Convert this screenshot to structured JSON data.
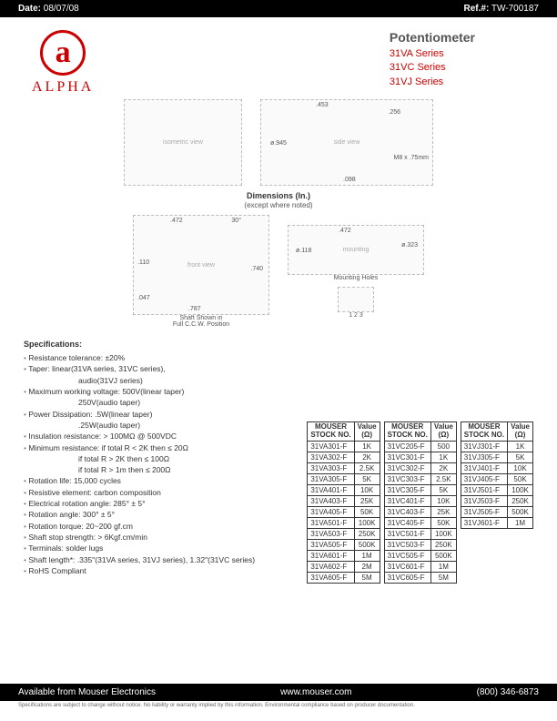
{
  "header": {
    "dateLabel": "Date:",
    "date": "08/07/08",
    "refLabel": "Ref.#:",
    "ref": "TW-700187"
  },
  "logo": {
    "letter": "a",
    "brand": "ALPHA"
  },
  "title": {
    "main": "Potentiometer",
    "series": [
      "31VA Series",
      "31VC Series",
      "31VJ Series"
    ]
  },
  "diagrams": {
    "top": {
      "left": {
        "placeholder": "isometric view"
      },
      "right": {
        "placeholder": "side view",
        "annotations": {
          "w": ".453",
          "h": ".256",
          "dia": "ø.945",
          "thread": "M8 x .75mm",
          "base": ".098"
        }
      }
    },
    "midLabel": "Dimensions (In.)",
    "midSub": "(except where noted)",
    "bottom": {
      "left": {
        "placeholder": "front view",
        "annotations": {
          "top": ".472",
          "ang": "30°",
          "l1": ".110",
          "l2": ".047",
          "h": ".740",
          "w": ".787"
        },
        "caption": "Shaft Shown in\nFull C.C.W. Position"
      },
      "right": {
        "placeholder": "mounting",
        "annotations": {
          "c": ".472",
          "d1": "ø.118",
          "d2": "ø.323"
        },
        "caption": "Mounting Holes",
        "pins": "1 2 3"
      }
    }
  },
  "specsTitle": "Specifications:",
  "specs": [
    "Resistance tolerance:  ±20%",
    "Taper:  linear(31VA series, 31VC series),",
    "          audio(31VJ series)",
    "Maximum working voltage:  500V(linear taper)",
    "                                        250V(audio taper)",
    "Power Dissipation:  .5W(linear taper)",
    "                              .25W(audio taper)",
    "Insulation resistance:  > 100MΩ @ 500VDC",
    "Minimum resistance:  if total R < 2K then ≤ 20Ω",
    "                                 if total R > 2K then ≤ 100Ω",
    "                                 if total R > 1m then ≤ 200Ω",
    "Rotation life:  15,000 cycles",
    "Resistive element:  carbon composition",
    "Electrical rotation angle:  285° ± 5°",
    "Rotation angle:  300° ± 5°",
    "Rotation torque:  20~200 gf.cm",
    "Shaft stop strength:  > 6Kgf.cm/min",
    "Terminals:  solder lugs",
    "Shaft length*:  .335\"(31VA series, 31VJ series), 1.32\"(31VC series)",
    "RoHS Compliant"
  ],
  "specIndents": [
    2,
    4,
    6,
    9,
    10
  ],
  "tableHeaders": {
    "stock": "MOUSER\nSTOCK NO.",
    "value": "Value\n(Ω)"
  },
  "tables": [
    {
      "rows": [
        [
          "31VA301-F",
          "1K"
        ],
        [
          "31VA302-F",
          "2K"
        ],
        [
          "31VA303-F",
          "2.5K"
        ],
        [
          "31VA305-F",
          "5K"
        ],
        [
          "31VA401-F",
          "10K"
        ],
        [
          "31VA403-F",
          "25K"
        ],
        [
          "31VA405-F",
          "50K"
        ],
        [
          "31VA501-F",
          "100K"
        ],
        [
          "31VA503-F",
          "250K"
        ],
        [
          "31VA505-F",
          "500K"
        ],
        [
          "31VA601-F",
          "1M"
        ],
        [
          "31VA602-F",
          "2M"
        ],
        [
          "31VA605-F",
          "5M"
        ]
      ]
    },
    {
      "rows": [
        [
          "31VC205-F",
          "500"
        ],
        [
          "31VC301-F",
          "1K"
        ],
        [
          "31VC302-F",
          "2K"
        ],
        [
          "31VC303-F",
          "2.5K"
        ],
        [
          "31VC305-F",
          "5K"
        ],
        [
          "31VC401-F",
          "10K"
        ],
        [
          "31VC403-F",
          "25K"
        ],
        [
          "31VC405-F",
          "50K"
        ],
        [
          "31VC501-F",
          "100K"
        ],
        [
          "31VC503-F",
          "250K"
        ],
        [
          "31VC505-F",
          "500K"
        ],
        [
          "31VC601-F",
          "1M"
        ],
        [
          "31VC605-F",
          "5M"
        ]
      ]
    },
    {
      "rows": [
        [
          "31VJ301-F",
          "1K"
        ],
        [
          "31VJ305-F",
          "5K"
        ],
        [
          "31VJ401-F",
          "10K"
        ],
        [
          "31VJ405-F",
          "50K"
        ],
        [
          "31VJ501-F",
          "100K"
        ],
        [
          "31VJ503-F",
          "250K"
        ],
        [
          "31VJ505-F",
          "500K"
        ],
        [
          "31VJ601-F",
          "1M"
        ]
      ]
    }
  ],
  "footer": {
    "left": "Available from Mouser Electronics",
    "center": "www.mouser.com",
    "right": "(800) 346-6873",
    "fine": "Specifications are subject to change without notice.   No liability or warranty implied by this information.   Environmental compliance based on producer documentation."
  }
}
